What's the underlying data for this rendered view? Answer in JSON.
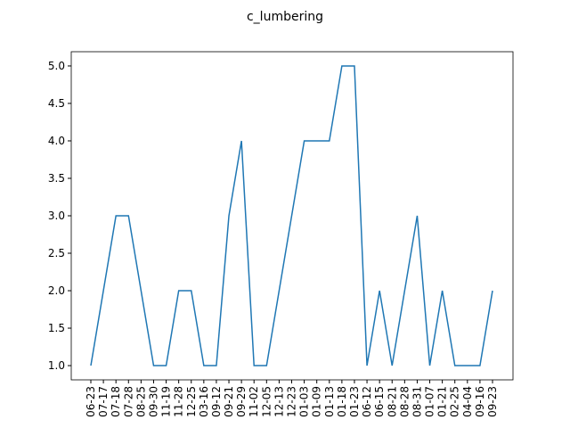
{
  "chart_data": {
    "type": "line",
    "title": "c_lumbering",
    "categories": [
      "06-23",
      "07-17",
      "07-18",
      "07-28",
      "08-25",
      "09-30",
      "11-19",
      "11-28",
      "12-25",
      "03-16",
      "09-12",
      "09-21",
      "09-29",
      "11-02",
      "12-05",
      "12-13",
      "12-23",
      "01-03",
      "01-09",
      "01-13",
      "01-18",
      "01-23",
      "06-12",
      "06-15",
      "08-21",
      "08-28",
      "08-31",
      "01-07",
      "01-21",
      "02-25",
      "04-04",
      "09-16",
      "09-23"
    ],
    "series": [
      {
        "color": "#1f77b4",
        "values": [
          1,
          2,
          3,
          3,
          2,
          1,
          1,
          2,
          2,
          1,
          1,
          3,
          4,
          1,
          1,
          2,
          3,
          4,
          4,
          4,
          5,
          5,
          1,
          2,
          1,
          2,
          3,
          1,
          2,
          1,
          1,
          1,
          2
        ]
      }
    ],
    "ylim": [
      0.81,
      5.19
    ],
    "yticks": [
      {
        "value": 1,
        "label": "1.0"
      },
      {
        "value": 1.5,
        "label": "1.5"
      },
      {
        "value": 2,
        "label": "2.0"
      },
      {
        "value": 2.5,
        "label": "2.5"
      },
      {
        "value": 3,
        "label": "3.0"
      },
      {
        "value": 3.5,
        "label": "3.5"
      },
      {
        "value": 4,
        "label": "4.0"
      },
      {
        "value": 4.5,
        "label": "4.5"
      },
      {
        "value": 5,
        "label": "5.0"
      }
    ]
  }
}
